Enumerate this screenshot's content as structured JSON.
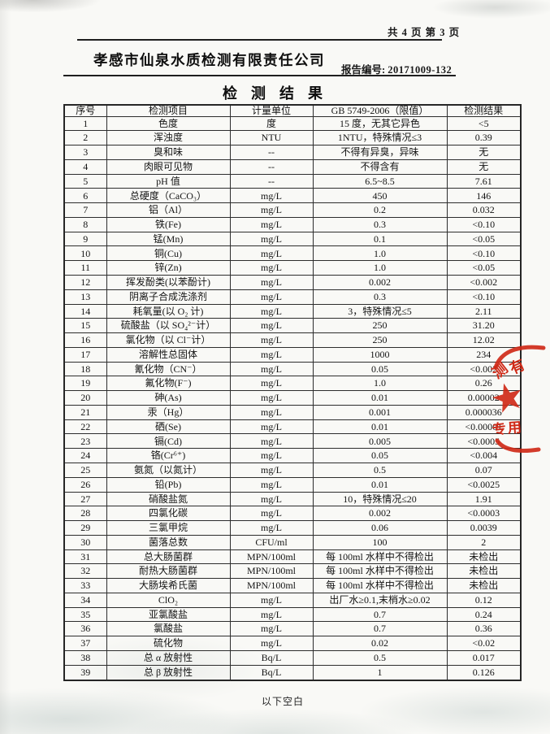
{
  "header": {
    "page_indicator": "共 4 页  第 3 页",
    "company_name": "孝感市仙泉水质检测有限责任公司",
    "report_label": "报告编号:",
    "report_number": "20171009-132"
  },
  "title": "检 测 结 果",
  "table": {
    "headers": [
      "序号",
      "检测项目",
      "计量单位",
      "GB 5749-2006（限值）",
      "检测结果"
    ],
    "rows": [
      [
        "1",
        "色度",
        "度",
        "15 度，无其它异色",
        "<5"
      ],
      [
        "2",
        "浑浊度",
        "NTU",
        "1NTU，特殊情况≤3",
        "0.39"
      ],
      [
        "3",
        "臭和味",
        "--",
        "不得有异臭，异味",
        "无"
      ],
      [
        "4",
        "肉眼可见物",
        "--",
        "不得含有",
        "无"
      ],
      [
        "5",
        "pH 值",
        "--",
        "6.5~8.5",
        "7.61"
      ],
      [
        "6",
        "总硬度（CaCO₃）",
        "mg/L",
        "450",
        "146"
      ],
      [
        "7",
        "铝（Al）",
        "mg/L",
        "0.2",
        "0.032"
      ],
      [
        "8",
        "铁(Fe)",
        "mg/L",
        "0.3",
        "<0.10"
      ],
      [
        "9",
        "锰(Mn)",
        "mg/L",
        "0.1",
        "<0.05"
      ],
      [
        "10",
        "铜(Cu)",
        "mg/L",
        "1.0",
        "<0.10"
      ],
      [
        "11",
        "锌(Zn)",
        "mg/L",
        "1.0",
        "<0.05"
      ],
      [
        "12",
        "挥发酚类(以苯酚计)",
        "mg/L",
        "0.002",
        "<0.002"
      ],
      [
        "13",
        "阴离子合成洗涤剂",
        "mg/L",
        "0.3",
        "<0.10"
      ],
      [
        "14",
        "耗氧量(以 O₂ 计)",
        "mg/L",
        "3，特殊情况≤5",
        "2.11"
      ],
      [
        "15",
        "硫酸盐（以 SO₄²⁻计）",
        "mg/L",
        "250",
        "31.20"
      ],
      [
        "16",
        "氯化物（以 Cl⁻计）",
        "mg/L",
        "250",
        "12.02"
      ],
      [
        "17",
        "溶解性总固体",
        "mg/L",
        "1000",
        "234"
      ],
      [
        "18",
        "氰化物（CN⁻）",
        "mg/L",
        "0.05",
        "<0.002"
      ],
      [
        "19",
        "氟化物(F⁻)",
        "mg/L",
        "1.0",
        "0.26"
      ],
      [
        "20",
        "砷(As)",
        "mg/L",
        "0.01",
        "0.00002"
      ],
      [
        "21",
        "汞（Hg）",
        "mg/L",
        "0.001",
        "0.000036"
      ],
      [
        "22",
        "硒(Se)",
        "mg/L",
        "0.01",
        "<0.00001"
      ],
      [
        "23",
        "镉(Cd)",
        "mg/L",
        "0.005",
        "<0.0005"
      ],
      [
        "24",
        "铬(Cr⁶⁺)",
        "mg/L",
        "0.05",
        "<0.004"
      ],
      [
        "25",
        "氨氮（以氮计）",
        "mg/L",
        "0.5",
        "0.07"
      ],
      [
        "26",
        "铅(Pb)",
        "mg/L",
        "0.01",
        "<0.0025"
      ],
      [
        "27",
        "硝酸盐氮",
        "mg/L",
        "10，特殊情况≤20",
        "1.91"
      ],
      [
        "28",
        "四氯化碳",
        "mg/L",
        "0.002",
        "<0.0003"
      ],
      [
        "29",
        "三氯甲烷",
        "mg/L",
        "0.06",
        "0.0039"
      ],
      [
        "30",
        "菌落总数",
        "CFU/ml",
        "100",
        "2"
      ],
      [
        "31",
        "总大肠菌群",
        "MPN/100ml",
        "每 100ml 水样中不得检出",
        "未检出"
      ],
      [
        "32",
        "耐热大肠菌群",
        "MPN/100ml",
        "每 100ml 水样中不得检出",
        "未检出"
      ],
      [
        "33",
        "大肠埃希氏菌",
        "MPN/100ml",
        "每 100ml 水样中不得检出",
        "未检出"
      ],
      [
        "34",
        "ClO₂",
        "mg/L",
        "出厂水≥0.1,末梢水≥0.02",
        "0.12"
      ],
      [
        "35",
        "亚氯酸盐",
        "mg/L",
        "0.7",
        "0.24"
      ],
      [
        "36",
        "氯酸盐",
        "mg/L",
        "0.7",
        "0.36"
      ],
      [
        "37",
        "硫化物",
        "mg/L",
        "0.02",
        "<0.02"
      ],
      [
        "38",
        "总 α 放射性",
        "Bq/L",
        "0.5",
        "0.017"
      ],
      [
        "39",
        "总 β 放射性",
        "Bq/L",
        "1",
        "0.126"
      ]
    ]
  },
  "footer": {
    "note": "以下空白"
  },
  "seal": {
    "color": "#cf2a18",
    "upper_chars": [
      "测",
      "有"
    ],
    "lower_chars": [
      "专",
      "用"
    ]
  }
}
